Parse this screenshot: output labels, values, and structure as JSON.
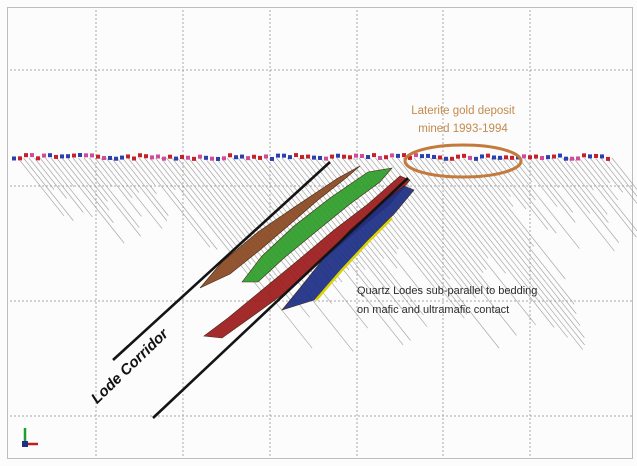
{
  "annotations": {
    "deposit_line1": "Laterite gold deposit",
    "deposit_line2": "mined 1993-1994",
    "lodes_line1": "Quartz Lodes sub-parallel to bedding",
    "lodes_line2": "on mafic and ultramafic contact",
    "corridor": "Lode Corridor"
  },
  "colors": {
    "lode_brown": "#8a4a22",
    "lode_green": "#2f9e2b",
    "lode_red": "#9e1c1c",
    "lode_blue": "#1d2f86",
    "lode_yellow": "#d8d400",
    "deposit_outline": "#c47a3c",
    "drillhole_trace": "#9a9a9a",
    "grid_line": "#a8a8a8",
    "corridor_line": "#141414"
  },
  "icons": {
    "axis_triad": "axis-triad-icon"
  }
}
